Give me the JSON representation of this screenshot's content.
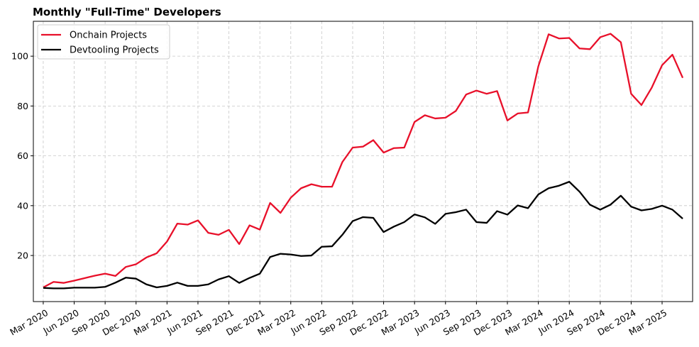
{
  "chart_data": {
    "type": "line",
    "title": "Monthly \"Full-Time\" Developers",
    "xlabel": "",
    "ylabel": "",
    "x_start": "Mar 2020",
    "x_end": "May 2025",
    "x_tick_labels": [
      "Mar 2020",
      "Jun 2020",
      "Sep 2020",
      "Dec 2020",
      "Mar 2021",
      "Jun 2021",
      "Sep 2021",
      "Dec 2021",
      "Mar 2022",
      "Jun 2022",
      "Sep 2022",
      "Dec 2022",
      "Mar 2023",
      "Jun 2023",
      "Sep 2023",
      "Dec 2023",
      "Mar 2024",
      "Jun 2024",
      "Sep 2024",
      "Dec 2024",
      "Mar 2025"
    ],
    "y_ticks": [
      20,
      40,
      60,
      80,
      100
    ],
    "ylim": [
      1.5,
      114
    ],
    "grid": true,
    "legend_position": "top-left",
    "series": [
      {
        "name": "Onchain Projects",
        "color": "#e8102a",
        "values": [
          7.2,
          9.4,
          9.0,
          9.9,
          10.9,
          11.9,
          12.7,
          11.8,
          15.4,
          16.5,
          19.2,
          20.9,
          25.6,
          32.8,
          32.4,
          34.1,
          29.1,
          28.3,
          30.3,
          24.6,
          32.1,
          30.4,
          41.1,
          37.1,
          43.2,
          47.0,
          48.6,
          47.6,
          47.6,
          57.5,
          63.3,
          63.7,
          66.3,
          61.3,
          63.1,
          63.3,
          73.6,
          76.3,
          75.0,
          75.3,
          78.0,
          84.6,
          86.2,
          84.9,
          86.0,
          74.2,
          77.0,
          77.4,
          95.9,
          108.8,
          107.1,
          107.3,
          103.1,
          102.8,
          107.6,
          109.0,
          105.6,
          84.9,
          80.4,
          87.4,
          96.4,
          100.6,
          91.3
        ]
      },
      {
        "name": "Devtooling Projects",
        "color": "#000000",
        "values": [
          7.0,
          6.8,
          6.8,
          7.1,
          7.1,
          7.1,
          7.4,
          9.1,
          11.1,
          10.7,
          8.4,
          7.2,
          7.8,
          9.1,
          7.8,
          7.8,
          8.4,
          10.4,
          11.7,
          9.0,
          11.0,
          12.7,
          19.4,
          20.7,
          20.4,
          19.8,
          20.0,
          23.5,
          23.7,
          28.3,
          33.8,
          35.4,
          35.1,
          29.4,
          31.6,
          33.4,
          36.5,
          35.3,
          32.7,
          36.7,
          37.4,
          38.4,
          33.4,
          33.1,
          37.8,
          36.4,
          40.1,
          39.0,
          44.5,
          47.0,
          48.0,
          49.6,
          45.6,
          40.4,
          38.4,
          40.4,
          44.0,
          39.6,
          38.1,
          38.7,
          40.0,
          38.4,
          34.8
        ]
      }
    ]
  }
}
